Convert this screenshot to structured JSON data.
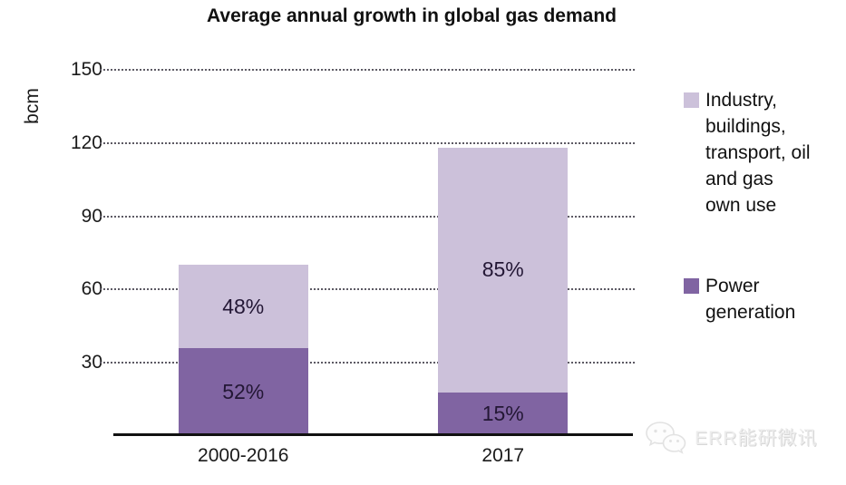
{
  "chart_data": {
    "type": "stacked-bar",
    "title": "Average annual growth in global gas demand",
    "ylabel": "bcm",
    "xlabel": "",
    "ylim": [
      0,
      150
    ],
    "yticks": [
      30,
      60,
      90,
      120,
      150
    ],
    "grid": "horizontal dotted gridlines",
    "legend_position": "right",
    "categories": [
      "2000-2016",
      "2017"
    ],
    "totals_bcm": [
      70,
      118
    ],
    "series": [
      {
        "name": "Power generation",
        "color": "#8064a2",
        "values_bcm": [
          36,
          18
        ],
        "percent_labels": [
          "52%",
          "15%"
        ]
      },
      {
        "name": "Industry, buildings, transport, oil and gas own use",
        "color": "#ccc1da",
        "values_bcm": [
          34,
          100
        ],
        "percent_labels": [
          "48%",
          "85%"
        ]
      }
    ]
  },
  "colors": {
    "dark_purple": "#8064a2",
    "light_purple": "#ccc1da",
    "gridline": "#5d5a64",
    "axis_line": "#111111",
    "watermark": "#ededed"
  },
  "watermark": {
    "icon": "wechat-icon",
    "text": "ERR能研微讯"
  }
}
